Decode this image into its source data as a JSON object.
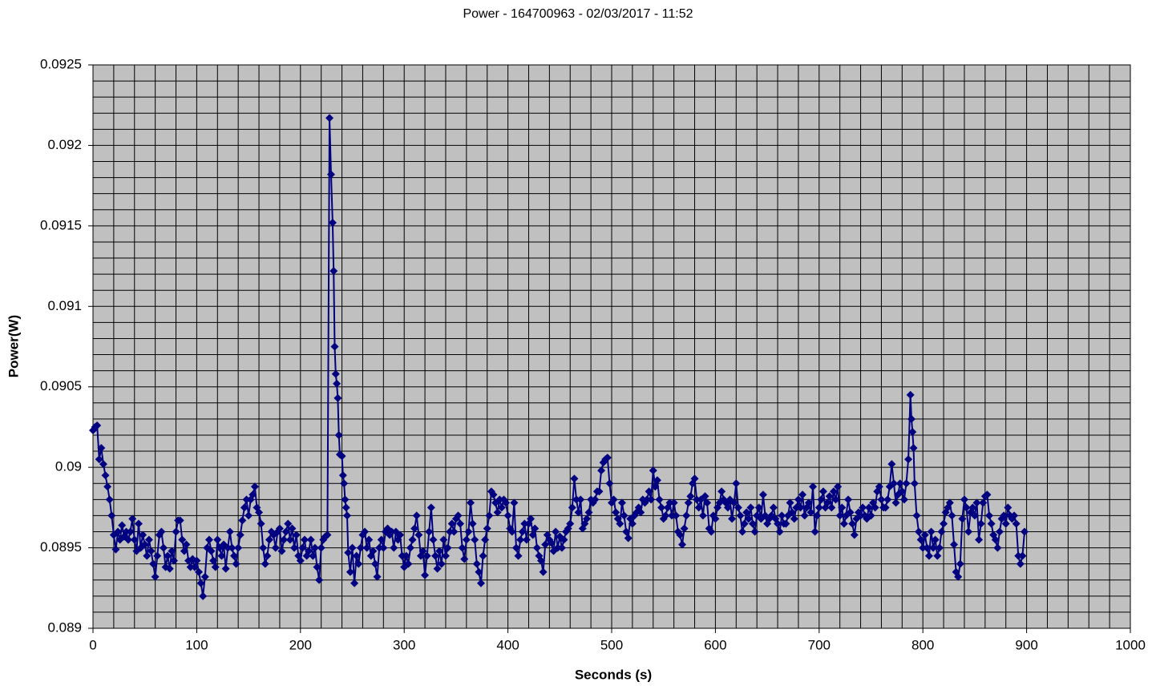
{
  "chart_data": {
    "type": "line",
    "title": "Power - 164700963 - 02/03/2017 - 11:52",
    "x_label": "Seconds (s)",
    "y_label": "Power(W)",
    "xlim": [
      0,
      1000
    ],
    "xticks": [
      0,
      100,
      200,
      300,
      400,
      500,
      600,
      700,
      800,
      900,
      1000
    ],
    "ylim": [
      0.089,
      0.0925
    ],
    "yticks": [
      0.089,
      0.0895,
      0.09,
      0.0905,
      0.091,
      0.0915,
      0.092,
      0.0925
    ],
    "grid": true,
    "x_grid_step": 20,
    "y_grid_step": 0.0001,
    "plot_background": "#c0c0c0",
    "marker": "diamond",
    "x": [
      0,
      2,
      4,
      6,
      8,
      10,
      12,
      14,
      16,
      18,
      20,
      22,
      24,
      26,
      28,
      30,
      32,
      34,
      36,
      38,
      40,
      42,
      44,
      46,
      48,
      50,
      52,
      54,
      56,
      58,
      60,
      62,
      64,
      66,
      68,
      70,
      72,
      74,
      76,
      78,
      80,
      82,
      84,
      86,
      88,
      90,
      92,
      94,
      96,
      98,
      100,
      102,
      104,
      106,
      108,
      110,
      112,
      114,
      116,
      118,
      120,
      122,
      124,
      126,
      128,
      130,
      132,
      134,
      136,
      138,
      140,
      142,
      144,
      146,
      148,
      150,
      152,
      154,
      156,
      158,
      160,
      162,
      164,
      166,
      168,
      170,
      172,
      174,
      176,
      178,
      180,
      182,
      184,
      186,
      188,
      190,
      192,
      194,
      196,
      198,
      200,
      202,
      204,
      206,
      208,
      210,
      212,
      214,
      216,
      218,
      220,
      222,
      224,
      226,
      228,
      229.5,
      231,
      232,
      233,
      234,
      235,
      236,
      237,
      238,
      240,
      241,
      242,
      243,
      244,
      245,
      246,
      248,
      250,
      252,
      254,
      256,
      258,
      260,
      262,
      264,
      266,
      268,
      270,
      272,
      274,
      276,
      278,
      280,
      282,
      284,
      286,
      288,
      290,
      292,
      294,
      296,
      298,
      300,
      302,
      304,
      306,
      308,
      310,
      312,
      314,
      316,
      318,
      320,
      322,
      324,
      326,
      328,
      330,
      332,
      334,
      336,
      338,
      340,
      342,
      344,
      346,
      348,
      350,
      352,
      354,
      356,
      358,
      360,
      362,
      364,
      366,
      368,
      370,
      372,
      374,
      376,
      378,
      380,
      382,
      384,
      386,
      388,
      390,
      392,
      394,
      396,
      398,
      400,
      402,
      404,
      406,
      408,
      410,
      412,
      414,
      416,
      418,
      420,
      422,
      424,
      426,
      428,
      430,
      432,
      434,
      436,
      438,
      440,
      442,
      444,
      446,
      448,
      450,
      452,
      454,
      456,
      458,
      460,
      462,
      464,
      466,
      468,
      470,
      472,
      474,
      476,
      478,
      480,
      482,
      484,
      486,
      488,
      490,
      492,
      494,
      496,
      498,
      500,
      502,
      504,
      506,
      508,
      510,
      512,
      514,
      516,
      518,
      520,
      522,
      524,
      526,
      528,
      530,
      532,
      534,
      536,
      538,
      540,
      542,
      544,
      546,
      548,
      550,
      552,
      554,
      556,
      558,
      560,
      562,
      564,
      566,
      568,
      570,
      572,
      574,
      576,
      578,
      580,
      582,
      584,
      586,
      588,
      590,
      592,
      594,
      596,
      598,
      600,
      602,
      604,
      606,
      608,
      610,
      612,
      614,
      616,
      618,
      620,
      622,
      624,
      626,
      628,
      630,
      632,
      634,
      636,
      638,
      640,
      642,
      644,
      646,
      648,
      650,
      652,
      654,
      656,
      658,
      660,
      662,
      664,
      666,
      668,
      670,
      672,
      674,
      676,
      678,
      680,
      682,
      684,
      686,
      688,
      690,
      692,
      694,
      696,
      698,
      700,
      702,
      704,
      706,
      708,
      710,
      712,
      714,
      716,
      718,
      720,
      722,
      724,
      726,
      728,
      730,
      732,
      734,
      736,
      738,
      740,
      742,
      744,
      746,
      748,
      750,
      752,
      754,
      756,
      758,
      760,
      762,
      764,
      766,
      768,
      770,
      772,
      774,
      776,
      778,
      780,
      782,
      784,
      786,
      788,
      789,
      790,
      791,
      792,
      794,
      796,
      798,
      800,
      802,
      804,
      806,
      808,
      810,
      812,
      814,
      816,
      818,
      820,
      822,
      824,
      826,
      828,
      830,
      832,
      834,
      836,
      838,
      840,
      842,
      844,
      846,
      848,
      850,
      852,
      854,
      856,
      858,
      860,
      862,
      864,
      866,
      868,
      870,
      872,
      874,
      876,
      878,
      880,
      882,
      884,
      886,
      888,
      890,
      892,
      894,
      896,
      898
    ],
    "series": [
      {
        "name": "Power",
        "color": "#000080",
        "values": [
          0.09023,
          0.09025,
          0.09026,
          0.09005,
          0.09012,
          0.09002,
          0.08995,
          0.08988,
          0.0898,
          0.0897,
          0.08958,
          0.08949,
          0.0896,
          0.08955,
          0.08964,
          0.08957,
          0.0896,
          0.08955,
          0.0896,
          0.08968,
          0.08955,
          0.08948,
          0.08965,
          0.0895,
          0.08958,
          0.08952,
          0.08945,
          0.08955,
          0.08948,
          0.0894,
          0.08932,
          0.08945,
          0.08958,
          0.0896,
          0.0895,
          0.08938,
          0.08945,
          0.08937,
          0.08948,
          0.08942,
          0.0896,
          0.08967,
          0.08967,
          0.08955,
          0.08948,
          0.08952,
          0.08942,
          0.08938,
          0.08943,
          0.08938,
          0.08942,
          0.08935,
          0.08928,
          0.0892,
          0.08932,
          0.0895,
          0.08955,
          0.08948,
          0.08942,
          0.08938,
          0.08955,
          0.0895,
          0.08945,
          0.08952,
          0.08937,
          0.0895,
          0.0896,
          0.0895,
          0.08945,
          0.0894,
          0.0895,
          0.08958,
          0.08967,
          0.08975,
          0.0898,
          0.0897,
          0.0898,
          0.08983,
          0.08988,
          0.08975,
          0.08972,
          0.08965,
          0.0895,
          0.0894,
          0.08945,
          0.08955,
          0.0896,
          0.08958,
          0.0895,
          0.0896,
          0.08962,
          0.08948,
          0.08955,
          0.0896,
          0.08965,
          0.08955,
          0.08962,
          0.0895,
          0.08958,
          0.08945,
          0.08942,
          0.0895,
          0.08955,
          0.08945,
          0.08948,
          0.08955,
          0.08945,
          0.0895,
          0.08938,
          0.0893,
          0.0895,
          0.08955,
          0.08957,
          0.08958,
          0.09217,
          0.09182,
          0.09152,
          0.09122,
          0.09075,
          0.09058,
          0.09052,
          0.09043,
          0.0902,
          0.09008,
          0.09007,
          0.08995,
          0.0899,
          0.0898,
          0.08975,
          0.0897,
          0.08947,
          0.08935,
          0.0895,
          0.08928,
          0.08945,
          0.0894,
          0.0895,
          0.08958,
          0.0896,
          0.0895,
          0.08955,
          0.08945,
          0.08948,
          0.0894,
          0.08932,
          0.0895,
          0.08955,
          0.0895,
          0.0896,
          0.08962,
          0.08958,
          0.0896,
          0.0895,
          0.0896,
          0.08955,
          0.08958,
          0.08945,
          0.08938,
          0.08945,
          0.0894,
          0.0895,
          0.08955,
          0.08962,
          0.0897,
          0.08958,
          0.08945,
          0.08948,
          0.08933,
          0.08945,
          0.0896,
          0.08975,
          0.08955,
          0.08945,
          0.08937,
          0.08948,
          0.0894,
          0.08955,
          0.08945,
          0.0895,
          0.0896,
          0.08965,
          0.0896,
          0.08968,
          0.0897,
          0.08965,
          0.0895,
          0.08943,
          0.08955,
          0.0896,
          0.08978,
          0.08965,
          0.08955,
          0.0894,
          0.08935,
          0.08928,
          0.08945,
          0.08955,
          0.08962,
          0.0897,
          0.08985,
          0.08983,
          0.08978,
          0.08972,
          0.0898,
          0.08975,
          0.0898,
          0.08978,
          0.0897,
          0.08962,
          0.0896,
          0.08978,
          0.0895,
          0.08945,
          0.08955,
          0.0896,
          0.08965,
          0.08955,
          0.08965,
          0.08968,
          0.08958,
          0.08962,
          0.0895,
          0.08945,
          0.08942,
          0.08935,
          0.08952,
          0.08958,
          0.08955,
          0.08953,
          0.08948,
          0.0896,
          0.0895,
          0.08957,
          0.0895,
          0.08955,
          0.0896,
          0.08962,
          0.08965,
          0.08975,
          0.08993,
          0.0898,
          0.08972,
          0.0898,
          0.08962,
          0.08965,
          0.08968,
          0.08972,
          0.0898,
          0.08978,
          0.0898,
          0.08985,
          0.08985,
          0.08998,
          0.09003,
          0.09005,
          0.09006,
          0.0899,
          0.08978,
          0.0898,
          0.08972,
          0.08968,
          0.08965,
          0.08978,
          0.0897,
          0.0896,
          0.08956,
          0.08968,
          0.08965,
          0.0897,
          0.08972,
          0.08975,
          0.08972,
          0.0898,
          0.08978,
          0.0898,
          0.08985,
          0.0898,
          0.08998,
          0.08988,
          0.08992,
          0.0898,
          0.08975,
          0.08968,
          0.0897,
          0.08975,
          0.08978,
          0.0897,
          0.08978,
          0.0897,
          0.0896,
          0.08958,
          0.08952,
          0.08962,
          0.0897,
          0.08978,
          0.08982,
          0.0899,
          0.08993,
          0.0898,
          0.08975,
          0.0898,
          0.0897,
          0.08982,
          0.08978,
          0.08962,
          0.0896,
          0.0897,
          0.08968,
          0.08975,
          0.08978,
          0.08985,
          0.0898,
          0.08978,
          0.08975,
          0.0898,
          0.08968,
          0.08978,
          0.0899,
          0.08975,
          0.0897,
          0.0896,
          0.08965,
          0.08972,
          0.08968,
          0.08975,
          0.08965,
          0.0896,
          0.0897,
          0.08975,
          0.08968,
          0.08983,
          0.0897,
          0.08965,
          0.08968,
          0.0897,
          0.08975,
          0.08968,
          0.08965,
          0.0896,
          0.0897,
          0.08965,
          0.08965,
          0.0897,
          0.08978,
          0.08972,
          0.08968,
          0.08975,
          0.0898,
          0.08975,
          0.08983,
          0.0897,
          0.08975,
          0.08978,
          0.08972,
          0.08988,
          0.0896,
          0.0897,
          0.08975,
          0.0898,
          0.08985,
          0.08975,
          0.08978,
          0.08982,
          0.08975,
          0.08985,
          0.0898,
          0.08988,
          0.0897,
          0.08975,
          0.08965,
          0.0897,
          0.0898,
          0.08972,
          0.08965,
          0.08958,
          0.08968,
          0.08972,
          0.0897,
          0.08975,
          0.0897,
          0.08968,
          0.08975,
          0.0897,
          0.08978,
          0.08975,
          0.08985,
          0.08988,
          0.0898,
          0.08975,
          0.08975,
          0.0898,
          0.08988,
          0.09002,
          0.0899,
          0.08978,
          0.08983,
          0.0899,
          0.08985,
          0.0898,
          0.0899,
          0.09005,
          0.09045,
          0.0903,
          0.09022,
          0.09012,
          0.0899,
          0.0897,
          0.0896,
          0.08955,
          0.0895,
          0.08958,
          0.0895,
          0.08945,
          0.0896,
          0.0895,
          0.08955,
          0.08945,
          0.0895,
          0.0896,
          0.08965,
          0.08972,
          0.08975,
          0.08978,
          0.0897,
          0.08952,
          0.08935,
          0.08932,
          0.0894,
          0.08968,
          0.0898,
          0.08975,
          0.0896,
          0.08972,
          0.08975,
          0.0897,
          0.08978,
          0.08955,
          0.08965,
          0.08978,
          0.08982,
          0.08983,
          0.0897,
          0.08965,
          0.08958,
          0.08955,
          0.0895,
          0.0896,
          0.08968,
          0.0897,
          0.08965,
          0.08975,
          0.0897,
          0.08968,
          0.0897,
          0.08965,
          0.08945,
          0.0894,
          0.08945,
          0.0896
        ]
      }
    ]
  }
}
